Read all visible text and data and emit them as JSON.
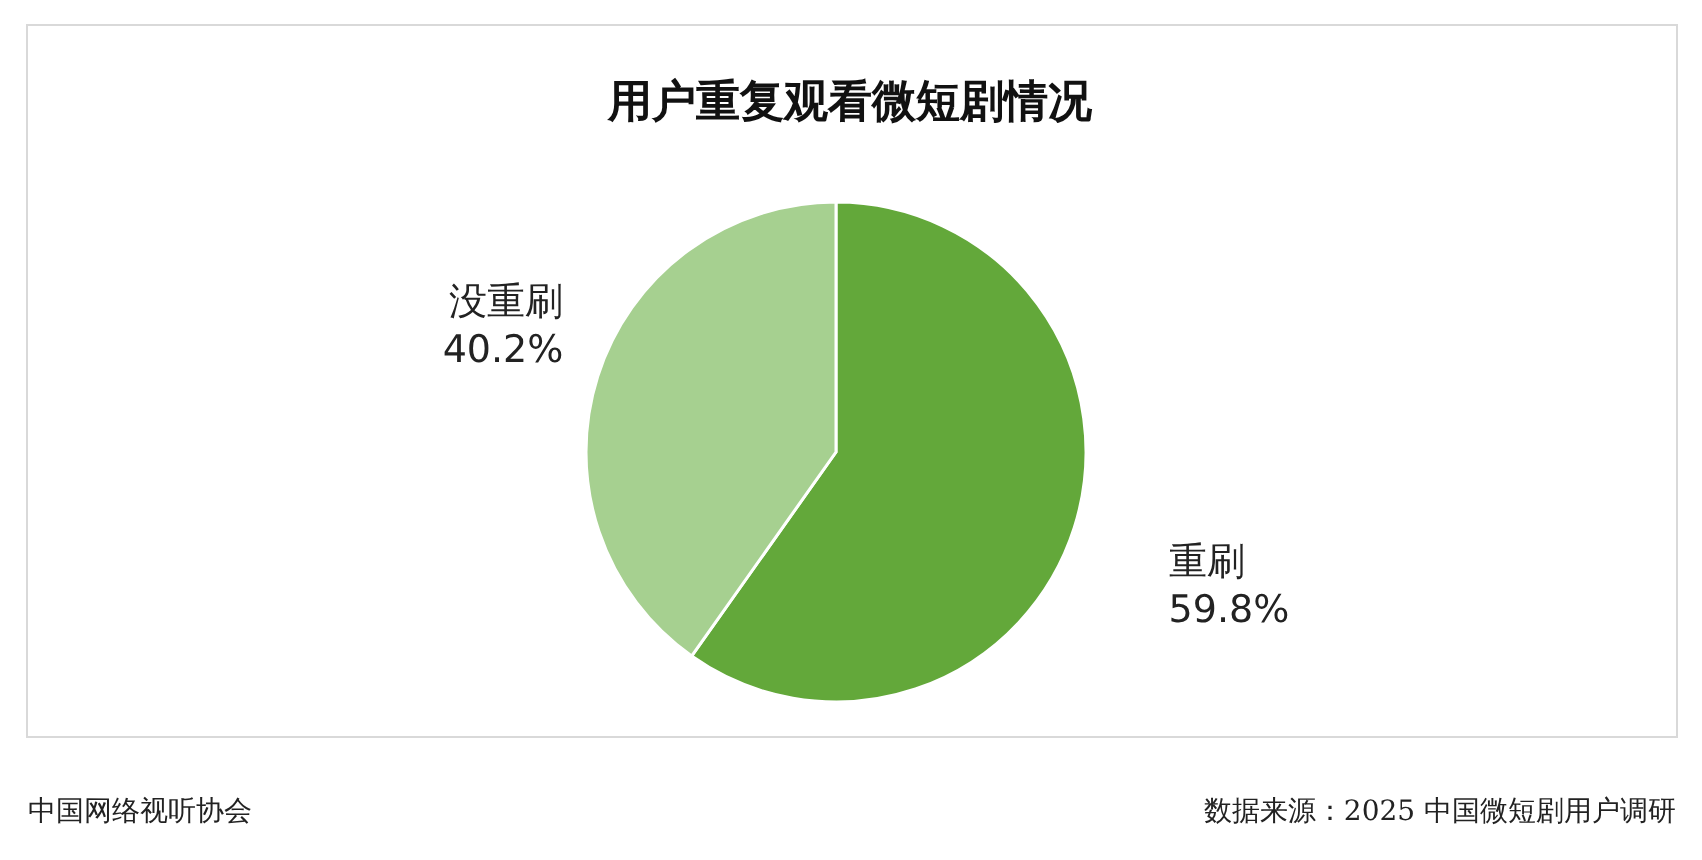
{
  "chart_data": {
    "type": "pie",
    "title": "用户重复观看微短剧情况",
    "categories": [
      "重刷",
      "没重刷"
    ],
    "values": [
      59.8,
      40.2
    ],
    "colors": [
      "#63a83a",
      "#a6d090"
    ],
    "value_labels": [
      "59.8%",
      "40.2%"
    ],
    "legend": false,
    "annotations": [
      "中国网络视听协会",
      "数据来源：2025 中国微短剧用户调研"
    ]
  }
}
